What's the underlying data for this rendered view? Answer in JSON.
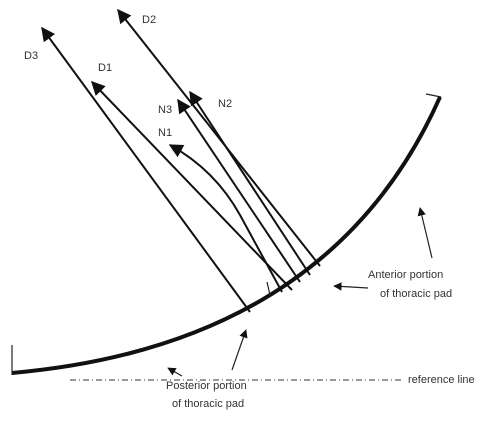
{
  "rays": {
    "D1": "D1",
    "D2": "D2",
    "D3": "D3",
    "N1": "N1",
    "N2": "N2",
    "N3": "N3"
  },
  "anterior": [
    "Anterior portion",
    "of thoracic pad"
  ],
  "posterior": [
    "Posterior portion",
    "of thoracic pad"
  ],
  "reference": "reference line"
}
